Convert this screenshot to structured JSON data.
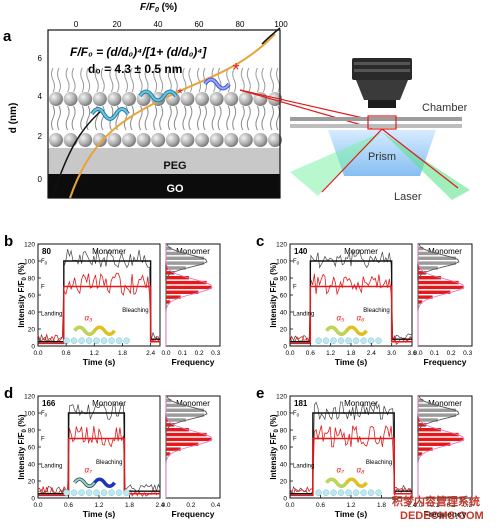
{
  "colors": {
    "red": "#e31a1c",
    "black": "#111111",
    "orange": "#e8a33a",
    "grey": "#9a9a9a",
    "pink": "#e07ac0",
    "blue": "#2a45c8"
  },
  "panel_a": {
    "letter": "a",
    "top_axis_title": "F/F",
    "top_axis_sub": "0",
    "top_axis_unit": " (%)",
    "top_ticks": [
      "0",
      "20",
      "40",
      "60",
      "80",
      "100"
    ],
    "left_axis_title": "d (nm)",
    "left_ticks": [
      "6",
      "4",
      "2",
      "0"
    ],
    "eq_line1": "F/F₀ = (d/d₀)⁴/[1+ (d/d₀)⁴]",
    "eq_line2": "d₀ = 4.3 ± 0.5 nm",
    "peg_label": "PEG",
    "go_label": "GO",
    "chamber_label": "Chamber",
    "prism_label": "Prism",
    "laser_label": "Laser"
  },
  "panels": [
    {
      "letter": "b",
      "count": "80",
      "title": "Monomer",
      "alpha": "α₃",
      "alpha2": "",
      "landing": "Landing",
      "bleaching": "Bleaching",
      "time_ticks": [
        "0.0",
        "0.6",
        "1.2",
        "1.8",
        "2.4"
      ],
      "freq_ticks": [
        "0.0",
        "0.1",
        "0.2",
        "0.3"
      ],
      "fx": "Fully"
    },
    {
      "letter": "c",
      "count": "140",
      "title": "Monomer",
      "alpha": "α₅",
      "alpha2": "α₆",
      "landing": "Landing",
      "bleaching": "Bleaching",
      "time_ticks": [
        "0.0",
        "0.6",
        "1.2",
        "1.8",
        "2.4",
        "3.0",
        "3.6"
      ],
      "freq_ticks": [
        "0.0",
        "0.1",
        "0.2",
        "0.3"
      ]
    },
    {
      "letter": "d",
      "count": "166",
      "title": "Monomer",
      "alpha": "α₇",
      "alpha2": "",
      "landing": "Landing",
      "bleaching": "Bleaching",
      "time_ticks": [
        "0.0",
        "0.6",
        "1.2",
        "1.8",
        "2.4"
      ],
      "freq_ticks": [
        "0.0",
        "0.2",
        "0.4"
      ]
    },
    {
      "letter": "e",
      "count": "181",
      "title": "Monomer",
      "alpha": "α₇",
      "alpha2": "α₈",
      "landing": "Landing",
      "bleaching": "Bleaching",
      "time_ticks": [
        "0.0",
        "0.6",
        "1.2",
        "1.8",
        "2.4"
      ],
      "freq_ticks": [
        "0.0",
        "0.1",
        "0.2",
        "0.3"
      ]
    }
  ],
  "common": {
    "y_label": "Intensity F/F",
    "y_sub": "0",
    "y_unit": " (%)",
    "y_ticks": [
      "120",
      "100",
      "80",
      "60",
      "40",
      "20",
      "0"
    ],
    "x_title": "Time (s)",
    "freq_title": "Frequency",
    "f0": "F",
    "f0sub": "0",
    "f": "F"
  },
  "watermark": {
    "line1": "积梦内容管理系统",
    "line2": "DEDECMS.COM"
  }
}
